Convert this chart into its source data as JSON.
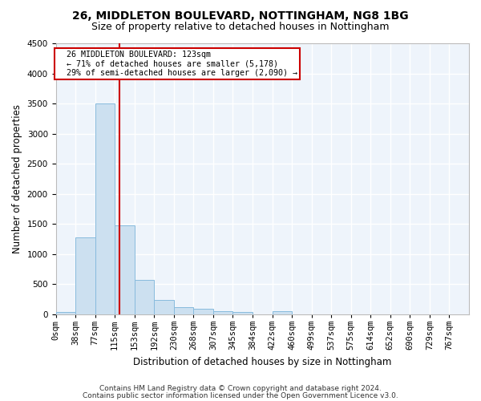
{
  "title1": "26, MIDDLETON BOULEVARD, NOTTINGHAM, NG8 1BG",
  "title2": "Size of property relative to detached houses in Nottingham",
  "xlabel": "Distribution of detached houses by size in Nottingham",
  "ylabel": "Number of detached properties",
  "bar_color": "#cce0f0",
  "bar_edge_color": "#88bbdd",
  "bins": [
    "0sqm",
    "38sqm",
    "77sqm",
    "115sqm",
    "153sqm",
    "192sqm",
    "230sqm",
    "268sqm",
    "307sqm",
    "345sqm",
    "384sqm",
    "422sqm",
    "460sqm",
    "499sqm",
    "537sqm",
    "575sqm",
    "614sqm",
    "652sqm",
    "690sqm",
    "729sqm",
    "767sqm"
  ],
  "values": [
    40,
    1280,
    3500,
    1480,
    575,
    240,
    120,
    85,
    55,
    40,
    0,
    55,
    0,
    0,
    0,
    0,
    0,
    0,
    0,
    0
  ],
  "ylim": [
    0,
    4500
  ],
  "yticks": [
    0,
    500,
    1000,
    1500,
    2000,
    2500,
    3000,
    3500,
    4000,
    4500
  ],
  "property_line_x": 123,
  "bin_width": 38,
  "annotation_title": "26 MIDDLETON BOULEVARD: 123sqm",
  "annotation_line1": "← 71% of detached houses are smaller (5,178)",
  "annotation_line2": "29% of semi-detached houses are larger (2,090) →",
  "footer1": "Contains HM Land Registry data © Crown copyright and database right 2024.",
  "footer2": "Contains public sector information licensed under the Open Government Licence v3.0.",
  "background_color": "#ffffff",
  "plot_bg_color": "#eef4fb",
  "grid_color": "#ffffff",
  "title1_fontsize": 10,
  "title2_fontsize": 9,
  "xlabel_fontsize": 8.5,
  "ylabel_fontsize": 8.5,
  "tick_fontsize": 7.5,
  "annotation_box_color": "#ffffff",
  "annotation_box_edge": "#cc0000",
  "red_line_color": "#cc0000",
  "footer_fontsize": 6.5
}
